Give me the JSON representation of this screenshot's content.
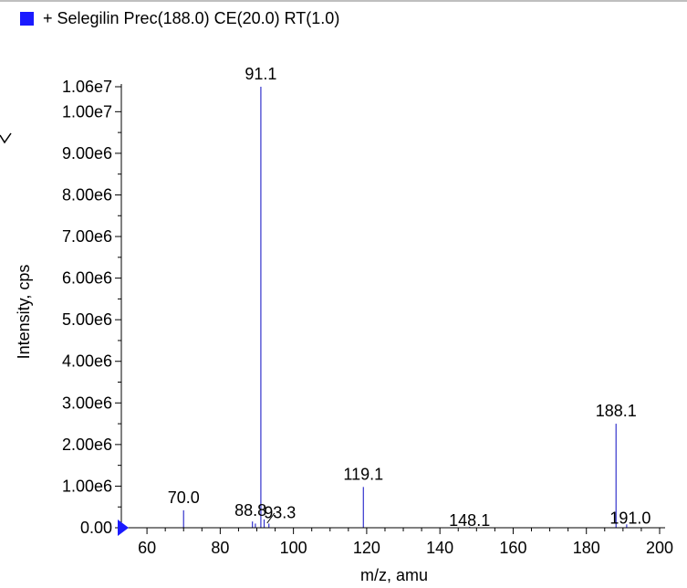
{
  "legend": {
    "text": "+ Selegilin Prec(188.0) CE(20.0) RT(1.0)",
    "swatch_color": "#1a1aff"
  },
  "chart_data": {
    "type": "bar",
    "title": "",
    "xlabel": "m/z, amu",
    "ylabel": "Intensity, cps",
    "xlim": [
      53,
      201
    ],
    "ylim": [
      0,
      10600000
    ],
    "xticks": [
      60,
      80,
      100,
      120,
      140,
      160,
      180,
      200
    ],
    "xtick_labels": [
      "60",
      "80",
      "100",
      "120",
      "140",
      "160",
      "180",
      "200"
    ],
    "yticks": [
      0,
      1000000,
      2000000,
      3000000,
      4000000,
      5000000,
      6000000,
      7000000,
      8000000,
      9000000,
      10000000,
      10600000
    ],
    "ytick_labels": [
      "0.00",
      "1.00e6",
      "2.00e6",
      "3.00e6",
      "4.00e6",
      "5.00e6",
      "6.00e6",
      "7.00e6",
      "8.00e6",
      "9.00e6",
      "1.00e7",
      "1.06e7"
    ],
    "grid": false,
    "series": [
      {
        "color": "#3333cc",
        "x": [
          70.0,
          88.8,
          89.6,
          91.1,
          92.0,
          93.3,
          119.1,
          148.1,
          188.1,
          191.0
        ],
        "values": [
          420000,
          150000,
          100000,
          10600000,
          200000,
          100000,
          980000,
          20000,
          2500000,
          80000
        ]
      }
    ],
    "peak_labels": [
      {
        "x": 91.1,
        "text": "91.1"
      },
      {
        "x": 188.1,
        "text": "188.1"
      },
      {
        "x": 119.1,
        "text": "119.1"
      },
      {
        "x": 70.0,
        "text": "70.0"
      },
      {
        "x": 88.8,
        "text": "88.8"
      },
      {
        "x": 93.3,
        "text": "93.3"
      },
      {
        "x": 148.1,
        "text": "148.1"
      },
      {
        "x": 191.0,
        "text": "191.0"
      }
    ]
  }
}
